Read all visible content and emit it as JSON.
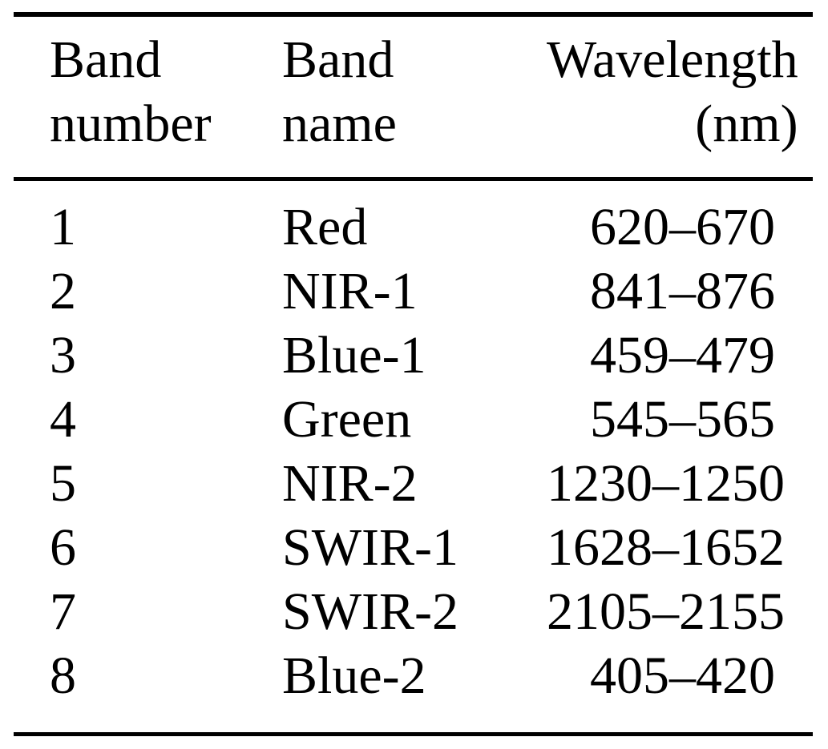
{
  "document": {
    "background_color": "#ffffff",
    "text_color": "#000000",
    "rule_color": "#000000"
  },
  "table": {
    "columns": [
      {
        "label_line1": "Band",
        "label_line2": "number",
        "align": "left"
      },
      {
        "label_line1": "Band",
        "label_line2": "name",
        "align": "left"
      },
      {
        "label_line1": "Wavelength",
        "label_line2": "(nm)",
        "align": "right"
      }
    ],
    "rows": [
      {
        "band_number": "1",
        "band_name": "Red",
        "wavelength_nm": "620–670"
      },
      {
        "band_number": "2",
        "band_name": "NIR-1",
        "wavelength_nm": "841–876"
      },
      {
        "band_number": "3",
        "band_name": "Blue-1",
        "wavelength_nm": "459–479"
      },
      {
        "band_number": "4",
        "band_name": "Green",
        "wavelength_nm": "545–565"
      },
      {
        "band_number": "5",
        "band_name": "NIR-2",
        "wavelength_nm": "1230–1250"
      },
      {
        "band_number": "6",
        "band_name": "SWIR-1",
        "wavelength_nm": "1628–1652"
      },
      {
        "band_number": "7",
        "band_name": "SWIR-2",
        "wavelength_nm": "2105–2155"
      },
      {
        "band_number": "8",
        "band_name": "Blue-2",
        "wavelength_nm": "405–420"
      }
    ]
  }
}
